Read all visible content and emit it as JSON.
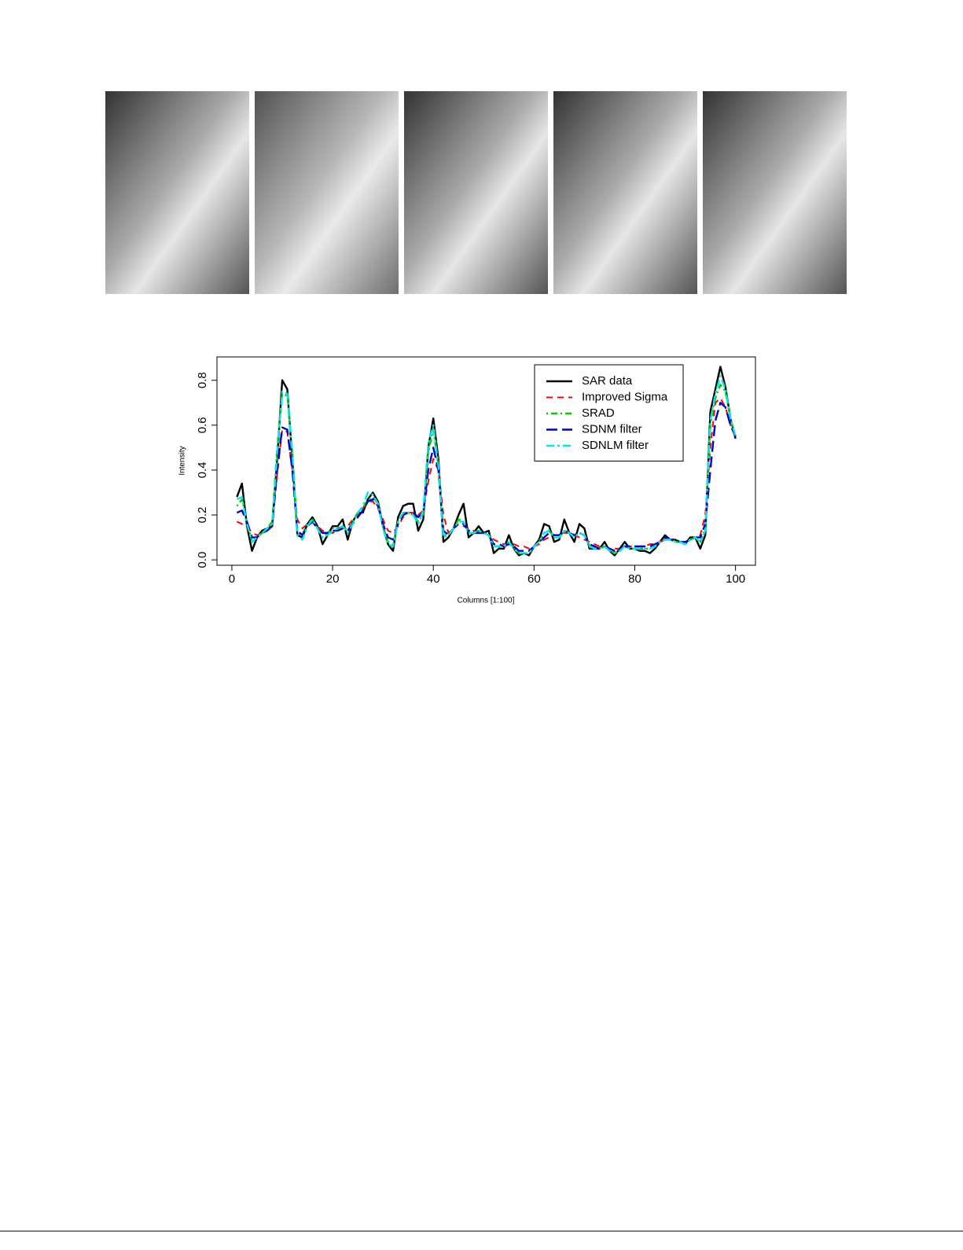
{
  "chart_data": {
    "type": "line",
    "x_label": "Columns [1:100]",
    "y_label": "Intensity",
    "x": [
      1,
      2,
      3,
      4,
      5,
      6,
      7,
      8,
      9,
      10,
      11,
      12,
      13,
      14,
      15,
      16,
      17,
      18,
      19,
      20,
      21,
      22,
      23,
      24,
      25,
      26,
      27,
      28,
      29,
      30,
      31,
      32,
      33,
      34,
      35,
      36,
      37,
      38,
      39,
      40,
      41,
      42,
      43,
      44,
      45,
      46,
      47,
      48,
      49,
      50,
      51,
      52,
      53,
      54,
      55,
      56,
      57,
      58,
      59,
      60,
      61,
      62,
      63,
      64,
      65,
      66,
      67,
      68,
      69,
      70,
      71,
      72,
      73,
      74,
      75,
      76,
      77,
      78,
      79,
      80,
      81,
      82,
      83,
      84,
      85,
      86,
      87,
      88,
      89,
      90,
      91,
      92,
      93,
      94,
      95,
      96,
      97,
      98,
      99,
      100
    ],
    "series": [
      {
        "name": "SAR data",
        "color": "#000000",
        "values": [
          0.28,
          0.34,
          0.15,
          0.04,
          0.1,
          0.13,
          0.14,
          0.15,
          0.45,
          0.8,
          0.76,
          0.45,
          0.11,
          0.1,
          0.16,
          0.19,
          0.15,
          0.07,
          0.11,
          0.15,
          0.15,
          0.18,
          0.09,
          0.17,
          0.21,
          0.21,
          0.27,
          0.3,
          0.26,
          0.15,
          0.07,
          0.04,
          0.19,
          0.24,
          0.25,
          0.25,
          0.13,
          0.18,
          0.5,
          0.63,
          0.45,
          0.08,
          0.1,
          0.14,
          0.2,
          0.25,
          0.1,
          0.12,
          0.15,
          0.12,
          0.13,
          0.03,
          0.05,
          0.05,
          0.11,
          0.05,
          0.02,
          0.03,
          0.02,
          0.06,
          0.09,
          0.16,
          0.15,
          0.08,
          0.09,
          0.18,
          0.12,
          0.08,
          0.16,
          0.14,
          0.05,
          0.05,
          0.05,
          0.08,
          0.04,
          0.02,
          0.05,
          0.08,
          0.05,
          0.05,
          0.04,
          0.04,
          0.03,
          0.05,
          0.08,
          0.11,
          0.09,
          0.09,
          0.08,
          0.07,
          0.1,
          0.1,
          0.05,
          0.11,
          0.66,
          0.76,
          0.86,
          0.77,
          0.63,
          0.54
        ]
      },
      {
        "name": "Improved Sigma",
        "color": "#ff0000",
        "values": [
          0.17,
          0.16,
          0.15,
          0.12,
          0.11,
          0.12,
          0.13,
          0.16,
          0.38,
          0.58,
          0.57,
          0.4,
          0.18,
          0.14,
          0.16,
          0.17,
          0.15,
          0.13,
          0.12,
          0.12,
          0.13,
          0.14,
          0.15,
          0.18,
          0.2,
          0.23,
          0.26,
          0.26,
          0.23,
          0.18,
          0.13,
          0.12,
          0.15,
          0.19,
          0.21,
          0.21,
          0.2,
          0.22,
          0.35,
          0.45,
          0.4,
          0.2,
          0.12,
          0.14,
          0.16,
          0.15,
          0.14,
          0.13,
          0.12,
          0.12,
          0.11,
          0.09,
          0.08,
          0.07,
          0.07,
          0.07,
          0.06,
          0.06,
          0.05,
          0.06,
          0.07,
          0.09,
          0.1,
          0.11,
          0.11,
          0.12,
          0.12,
          0.11,
          0.1,
          0.09,
          0.08,
          0.07,
          0.06,
          0.06,
          0.05,
          0.05,
          0.05,
          0.06,
          0.06,
          0.06,
          0.06,
          0.06,
          0.07,
          0.07,
          0.08,
          0.09,
          0.09,
          0.09,
          0.08,
          0.08,
          0.09,
          0.1,
          0.11,
          0.2,
          0.5,
          0.7,
          0.72,
          0.68,
          0.6,
          0.55
        ]
      },
      {
        "name": "SRAD",
        "color": "#00cc00",
        "values": [
          0.24,
          0.27,
          0.17,
          0.08,
          0.1,
          0.12,
          0.14,
          0.17,
          0.5,
          0.74,
          0.73,
          0.48,
          0.12,
          0.11,
          0.16,
          0.18,
          0.14,
          0.1,
          0.12,
          0.14,
          0.14,
          0.15,
          0.13,
          0.17,
          0.21,
          0.23,
          0.27,
          0.28,
          0.25,
          0.15,
          0.08,
          0.07,
          0.17,
          0.21,
          0.21,
          0.2,
          0.17,
          0.2,
          0.48,
          0.58,
          0.42,
          0.11,
          0.11,
          0.14,
          0.18,
          0.17,
          0.12,
          0.12,
          0.13,
          0.12,
          0.11,
          0.06,
          0.06,
          0.06,
          0.08,
          0.05,
          0.03,
          0.03,
          0.03,
          0.06,
          0.08,
          0.12,
          0.13,
          0.1,
          0.1,
          0.13,
          0.12,
          0.1,
          0.12,
          0.11,
          0.06,
          0.05,
          0.05,
          0.06,
          0.04,
          0.03,
          0.04,
          0.06,
          0.05,
          0.05,
          0.05,
          0.05,
          0.05,
          0.06,
          0.08,
          0.09,
          0.09,
          0.08,
          0.08,
          0.07,
          0.09,
          0.1,
          0.08,
          0.14,
          0.6,
          0.72,
          0.78,
          0.75,
          0.63,
          0.55
        ]
      },
      {
        "name": "SDNM filter",
        "color": "#0000cc",
        "values": [
          0.21,
          0.22,
          0.17,
          0.1,
          0.1,
          0.12,
          0.13,
          0.15,
          0.4,
          0.59,
          0.58,
          0.4,
          0.13,
          0.11,
          0.15,
          0.17,
          0.14,
          0.12,
          0.12,
          0.13,
          0.13,
          0.14,
          0.13,
          0.16,
          0.19,
          0.22,
          0.26,
          0.27,
          0.24,
          0.16,
          0.1,
          0.09,
          0.16,
          0.2,
          0.21,
          0.21,
          0.19,
          0.21,
          0.4,
          0.5,
          0.4,
          0.13,
          0.11,
          0.14,
          0.16,
          0.16,
          0.13,
          0.12,
          0.12,
          0.12,
          0.11,
          0.07,
          0.07,
          0.06,
          0.07,
          0.06,
          0.04,
          0.04,
          0.04,
          0.06,
          0.08,
          0.1,
          0.12,
          0.11,
          0.11,
          0.13,
          0.12,
          0.11,
          0.12,
          0.11,
          0.07,
          0.06,
          0.05,
          0.06,
          0.05,
          0.04,
          0.05,
          0.06,
          0.06,
          0.06,
          0.06,
          0.06,
          0.06,
          0.07,
          0.08,
          0.1,
          0.09,
          0.09,
          0.08,
          0.08,
          0.09,
          0.1,
          0.1,
          0.16,
          0.4,
          0.62,
          0.7,
          0.68,
          0.6,
          0.55
        ]
      },
      {
        "name": "SDNLM filter",
        "color": "#00e5ee",
        "values": [
          0.27,
          0.28,
          0.16,
          0.08,
          0.1,
          0.12,
          0.14,
          0.16,
          0.48,
          0.75,
          0.74,
          0.48,
          0.11,
          0.09,
          0.15,
          0.18,
          0.14,
          0.1,
          0.11,
          0.13,
          0.14,
          0.15,
          0.12,
          0.16,
          0.21,
          0.24,
          0.3,
          0.29,
          0.25,
          0.14,
          0.07,
          0.06,
          0.17,
          0.21,
          0.21,
          0.2,
          0.16,
          0.22,
          0.52,
          0.6,
          0.42,
          0.1,
          0.11,
          0.14,
          0.17,
          0.17,
          0.12,
          0.12,
          0.13,
          0.12,
          0.11,
          0.06,
          0.06,
          0.06,
          0.08,
          0.05,
          0.03,
          0.03,
          0.03,
          0.06,
          0.08,
          0.12,
          0.13,
          0.1,
          0.1,
          0.13,
          0.12,
          0.1,
          0.12,
          0.11,
          0.06,
          0.05,
          0.05,
          0.06,
          0.04,
          0.03,
          0.04,
          0.06,
          0.05,
          0.05,
          0.05,
          0.05,
          0.05,
          0.06,
          0.08,
          0.09,
          0.09,
          0.08,
          0.08,
          0.07,
          0.09,
          0.1,
          0.08,
          0.13,
          0.62,
          0.74,
          0.82,
          0.76,
          0.63,
          0.55
        ]
      }
    ],
    "xlim": [
      -2.96,
      103.96
    ],
    "ylim": [
      -0.024,
      0.904
    ],
    "xticks": [
      0,
      20,
      40,
      60,
      80,
      100
    ],
    "yticks": [
      {
        "value": 0,
        "label": "0.0"
      },
      0.2,
      0.4,
      0.6,
      0.8
    ],
    "legend": "topright",
    "grid": false
  }
}
